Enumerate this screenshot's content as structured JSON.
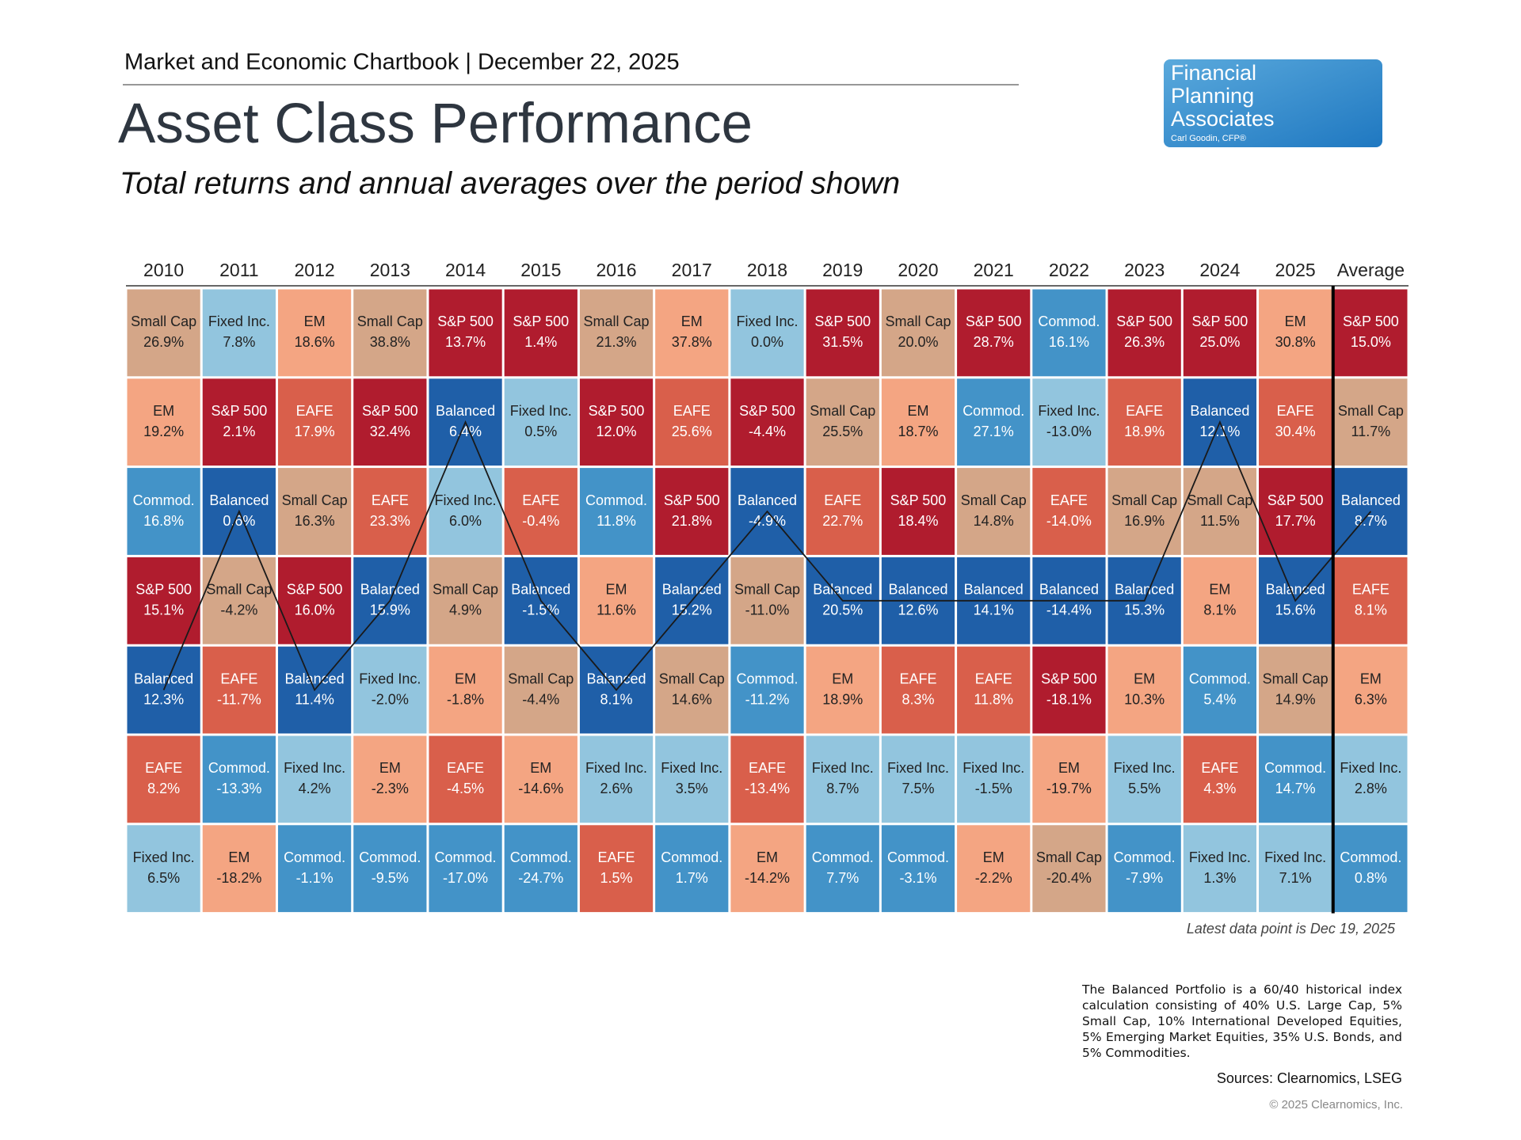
{
  "header": {
    "kicker": "Market and Economic Chartbook | December 22, 2025",
    "title": "Asset Class Performance",
    "subtitle": "Total returns and annual averages over the period shown"
  },
  "logo": {
    "lines": [
      "Financial",
      "Planning",
      "Associates"
    ],
    "tagline": "Carl Goodin, CFP®"
  },
  "quilt": {
    "line_asset": "Balanced",
    "colors": {
      "S&P 500": {
        "fill": "#b01c2e",
        "text": "#ffffff"
      },
      "EAFE": {
        "fill": "#d95f4b",
        "text": "#ffffff"
      },
      "EM": {
        "fill": "#f4a582",
        "text": "#222222"
      },
      "Small Cap": {
        "fill": "#d4a688",
        "text": "#222222"
      },
      "Balanced": {
        "fill": "#1f5fa8",
        "text": "#ffffff"
      },
      "Commod.": {
        "fill": "#4393c8",
        "text": "#ffffff"
      },
      "Fixed Inc.": {
        "fill": "#92c5de",
        "text": "#222222"
      }
    },
    "columns": [
      {
        "year": "2010",
        "cells": [
          [
            "Small Cap",
            "26.9%"
          ],
          [
            "EM",
            "19.2%"
          ],
          [
            "Commod.",
            "16.8%"
          ],
          [
            "S&P 500",
            "15.1%"
          ],
          [
            "Balanced",
            "12.3%"
          ],
          [
            "EAFE",
            "8.2%"
          ],
          [
            "Fixed Inc.",
            "6.5%"
          ]
        ]
      },
      {
        "year": "2011",
        "cells": [
          [
            "Fixed Inc.",
            "7.8%"
          ],
          [
            "S&P 500",
            "2.1%"
          ],
          [
            "Balanced",
            "0.6%"
          ],
          [
            "Small Cap",
            "-4.2%"
          ],
          [
            "EAFE",
            "-11.7%"
          ],
          [
            "Commod.",
            "-13.3%"
          ],
          [
            "EM",
            "-18.2%"
          ]
        ]
      },
      {
        "year": "2012",
        "cells": [
          [
            "EM",
            "18.6%"
          ],
          [
            "EAFE",
            "17.9%"
          ],
          [
            "Small Cap",
            "16.3%"
          ],
          [
            "S&P 500",
            "16.0%"
          ],
          [
            "Balanced",
            "11.4%"
          ],
          [
            "Fixed Inc.",
            "4.2%"
          ],
          [
            "Commod.",
            "-1.1%"
          ]
        ]
      },
      {
        "year": "2013",
        "cells": [
          [
            "Small Cap",
            "38.8%"
          ],
          [
            "S&P 500",
            "32.4%"
          ],
          [
            "EAFE",
            "23.3%"
          ],
          [
            "Balanced",
            "15.9%"
          ],
          [
            "Fixed Inc.",
            "-2.0%"
          ],
          [
            "EM",
            "-2.3%"
          ],
          [
            "Commod.",
            "-9.5%"
          ]
        ]
      },
      {
        "year": "2014",
        "cells": [
          [
            "S&P 500",
            "13.7%"
          ],
          [
            "Balanced",
            "6.4%"
          ],
          [
            "Fixed Inc.",
            "6.0%"
          ],
          [
            "Small Cap",
            "4.9%"
          ],
          [
            "EM",
            "-1.8%"
          ],
          [
            "EAFE",
            "-4.5%"
          ],
          [
            "Commod.",
            "-17.0%"
          ]
        ]
      },
      {
        "year": "2015",
        "cells": [
          [
            "S&P 500",
            "1.4%"
          ],
          [
            "Fixed Inc.",
            "0.5%"
          ],
          [
            "EAFE",
            "-0.4%"
          ],
          [
            "Balanced",
            "-1.5%"
          ],
          [
            "Small Cap",
            "-4.4%"
          ],
          [
            "EM",
            "-14.6%"
          ],
          [
            "Commod.",
            "-24.7%"
          ]
        ]
      },
      {
        "year": "2016",
        "cells": [
          [
            "Small Cap",
            "21.3%"
          ],
          [
            "S&P 500",
            "12.0%"
          ],
          [
            "Commod.",
            "11.8%"
          ],
          [
            "EM",
            "11.6%"
          ],
          [
            "Balanced",
            "8.1%"
          ],
          [
            "Fixed Inc.",
            "2.6%"
          ],
          [
            "EAFE",
            "1.5%"
          ]
        ]
      },
      {
        "year": "2017",
        "cells": [
          [
            "EM",
            "37.8%"
          ],
          [
            "EAFE",
            "25.6%"
          ],
          [
            "S&P 500",
            "21.8%"
          ],
          [
            "Balanced",
            "15.2%"
          ],
          [
            "Small Cap",
            "14.6%"
          ],
          [
            "Fixed Inc.",
            "3.5%"
          ],
          [
            "Commod.",
            "1.7%"
          ]
        ]
      },
      {
        "year": "2018",
        "cells": [
          [
            "Fixed Inc.",
            "0.0%"
          ],
          [
            "S&P 500",
            "-4.4%"
          ],
          [
            "Balanced",
            "-4.9%"
          ],
          [
            "Small Cap",
            "-11.0%"
          ],
          [
            "Commod.",
            "-11.2%"
          ],
          [
            "EAFE",
            "-13.4%"
          ],
          [
            "EM",
            "-14.2%"
          ]
        ]
      },
      {
        "year": "2019",
        "cells": [
          [
            "S&P 500",
            "31.5%"
          ],
          [
            "Small Cap",
            "25.5%"
          ],
          [
            "EAFE",
            "22.7%"
          ],
          [
            "Balanced",
            "20.5%"
          ],
          [
            "EM",
            "18.9%"
          ],
          [
            "Fixed Inc.",
            "8.7%"
          ],
          [
            "Commod.",
            "7.7%"
          ]
        ]
      },
      {
        "year": "2020",
        "cells": [
          [
            "Small Cap",
            "20.0%"
          ],
          [
            "EM",
            "18.7%"
          ],
          [
            "S&P 500",
            "18.4%"
          ],
          [
            "Balanced",
            "12.6%"
          ],
          [
            "EAFE",
            "8.3%"
          ],
          [
            "Fixed Inc.",
            "7.5%"
          ],
          [
            "Commod.",
            "-3.1%"
          ]
        ]
      },
      {
        "year": "2021",
        "cells": [
          [
            "S&P 500",
            "28.7%"
          ],
          [
            "Commod.",
            "27.1%"
          ],
          [
            "Small Cap",
            "14.8%"
          ],
          [
            "Balanced",
            "14.1%"
          ],
          [
            "EAFE",
            "11.8%"
          ],
          [
            "Fixed Inc.",
            "-1.5%"
          ],
          [
            "EM",
            "-2.2%"
          ]
        ]
      },
      {
        "year": "2022",
        "cells": [
          [
            "Commod.",
            "16.1%"
          ],
          [
            "Fixed Inc.",
            "-13.0%"
          ],
          [
            "EAFE",
            "-14.0%"
          ],
          [
            "Balanced",
            "-14.4%"
          ],
          [
            "S&P 500",
            "-18.1%"
          ],
          [
            "EM",
            "-19.7%"
          ],
          [
            "Small Cap",
            "-20.4%"
          ]
        ]
      },
      {
        "year": "2023",
        "cells": [
          [
            "S&P 500",
            "26.3%"
          ],
          [
            "EAFE",
            "18.9%"
          ],
          [
            "Small Cap",
            "16.9%"
          ],
          [
            "Balanced",
            "15.3%"
          ],
          [
            "EM",
            "10.3%"
          ],
          [
            "Fixed Inc.",
            "5.5%"
          ],
          [
            "Commod.",
            "-7.9%"
          ]
        ]
      },
      {
        "year": "2024",
        "cells": [
          [
            "S&P 500",
            "25.0%"
          ],
          [
            "Balanced",
            "12.1%"
          ],
          [
            "Small Cap",
            "11.5%"
          ],
          [
            "EM",
            "8.1%"
          ],
          [
            "Commod.",
            "5.4%"
          ],
          [
            "EAFE",
            "4.3%"
          ],
          [
            "Fixed Inc.",
            "1.3%"
          ]
        ]
      },
      {
        "year": "2025",
        "cells": [
          [
            "EM",
            "30.8%"
          ],
          [
            "EAFE",
            "30.4%"
          ],
          [
            "S&P 500",
            "17.7%"
          ],
          [
            "Balanced",
            "15.6%"
          ],
          [
            "Small Cap",
            "14.9%"
          ],
          [
            "Commod.",
            "14.7%"
          ],
          [
            "Fixed Inc.",
            "7.1%"
          ]
        ]
      },
      {
        "year": "Average",
        "cells": [
          [
            "S&P 500",
            "15.0%"
          ],
          [
            "Small Cap",
            "11.7%"
          ],
          [
            "Balanced",
            "8.7%"
          ],
          [
            "EAFE",
            "8.1%"
          ],
          [
            "EM",
            "6.3%"
          ],
          [
            "Fixed Inc.",
            "2.8%"
          ],
          [
            "Commod.",
            "0.8%"
          ]
        ]
      }
    ],
    "note": "Latest data point is Dec 19, 2025"
  },
  "footer": {
    "methodology": "The Balanced Portfolio is a 60/40 historical index calculation consisting of 40% U.S. Large Cap, 5% Small Cap, 10% International Developed Equities, 5% Emerging Market Equities, 35% U.S. Bonds, and 5% Commodities.",
    "sources": "Sources: Clearnomics, LSEG",
    "copyright": "© 2025 Clearnomics, Inc."
  }
}
